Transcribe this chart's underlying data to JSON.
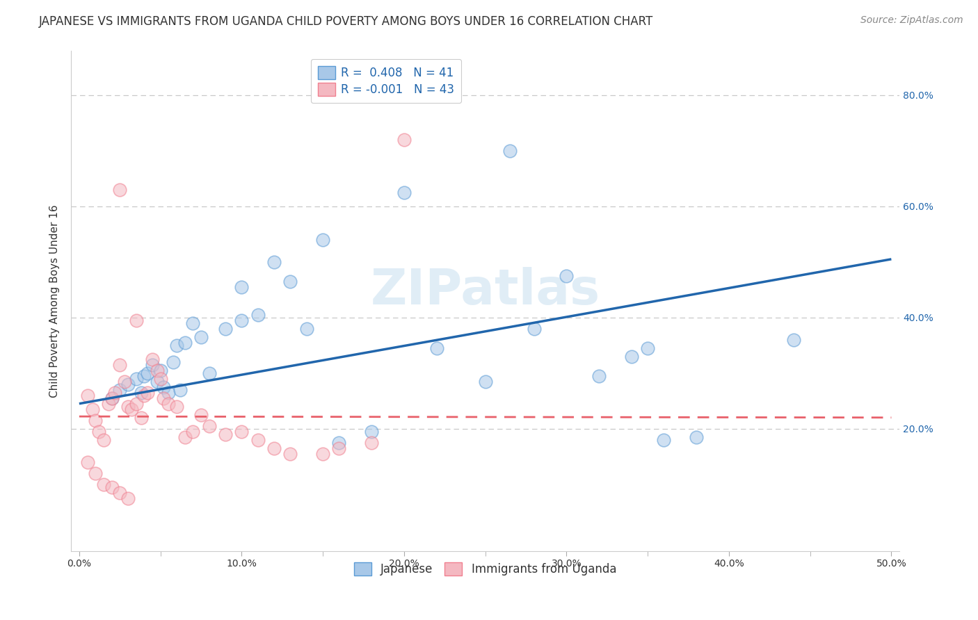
{
  "title": "JAPANESE VS IMMIGRANTS FROM UGANDA CHILD POVERTY AMONG BOYS UNDER 16 CORRELATION CHART",
  "source": "Source: ZipAtlas.com",
  "ylabel": "Child Poverty Among Boys Under 16",
  "xlim": [
    -0.005,
    0.505
  ],
  "ylim": [
    -0.02,
    0.88
  ],
  "xtick_labels": [
    "0.0%",
    "",
    "10.0%",
    "",
    "20.0%",
    "",
    "30.0%",
    "",
    "40.0%",
    "",
    "50.0%"
  ],
  "xtick_vals": [
    0.0,
    0.05,
    0.1,
    0.15,
    0.2,
    0.25,
    0.3,
    0.35,
    0.4,
    0.45,
    0.5
  ],
  "xtick_label_vals": [
    0.0,
    0.1,
    0.2,
    0.3,
    0.4,
    0.5
  ],
  "xtick_label_strs": [
    "0.0%",
    "10.0%",
    "20.0%",
    "30.0%",
    "40.0%",
    "50.0%"
  ],
  "ytick_vals": [
    0.2,
    0.4,
    0.6,
    0.8
  ],
  "ytick_labels": [
    "20.0%",
    "40.0%",
    "60.0%",
    "80.0%"
  ],
  "blue_fill_color": "#a8c8e8",
  "blue_edge_color": "#5b9bd5",
  "pink_fill_color": "#f4b8c1",
  "pink_edge_color": "#f08090",
  "blue_line_color": "#2166ac",
  "pink_line_color": "#e8606a",
  "legend_blue_label": "R =  0.408   N = 41",
  "legend_pink_label": "R = -0.001   N = 43",
  "legend_japanese": "Japanese",
  "legend_uganda": "Immigrants from Uganda",
  "watermark": "ZIPatlas",
  "blue_points_x": [
    0.02,
    0.025,
    0.03,
    0.035,
    0.038,
    0.04,
    0.042,
    0.045,
    0.048,
    0.05,
    0.052,
    0.055,
    0.058,
    0.06,
    0.062,
    0.065,
    0.07,
    0.075,
    0.08,
    0.09,
    0.1,
    0.11,
    0.12,
    0.14,
    0.16,
    0.18,
    0.22,
    0.25,
    0.28,
    0.32,
    0.35,
    0.38,
    0.44,
    0.3,
    0.265,
    0.2,
    0.15,
    0.13,
    0.34,
    0.36,
    0.1
  ],
  "blue_points_y": [
    0.255,
    0.27,
    0.28,
    0.29,
    0.265,
    0.295,
    0.3,
    0.315,
    0.285,
    0.305,
    0.275,
    0.265,
    0.32,
    0.35,
    0.27,
    0.355,
    0.39,
    0.365,
    0.3,
    0.38,
    0.395,
    0.405,
    0.5,
    0.38,
    0.175,
    0.195,
    0.345,
    0.285,
    0.38,
    0.295,
    0.345,
    0.185,
    0.36,
    0.475,
    0.7,
    0.625,
    0.54,
    0.465,
    0.33,
    0.18,
    0.455
  ],
  "pink_points_x": [
    0.005,
    0.008,
    0.01,
    0.012,
    0.015,
    0.018,
    0.02,
    0.022,
    0.025,
    0.028,
    0.03,
    0.032,
    0.035,
    0.038,
    0.04,
    0.042,
    0.045,
    0.048,
    0.05,
    0.052,
    0.055,
    0.06,
    0.065,
    0.07,
    0.075,
    0.08,
    0.09,
    0.1,
    0.11,
    0.13,
    0.15,
    0.18,
    0.005,
    0.01,
    0.015,
    0.02,
    0.025,
    0.03,
    0.12,
    0.16,
    0.2,
    0.025,
    0.035
  ],
  "pink_points_y": [
    0.26,
    0.235,
    0.215,
    0.195,
    0.18,
    0.245,
    0.255,
    0.265,
    0.315,
    0.285,
    0.24,
    0.235,
    0.245,
    0.22,
    0.26,
    0.265,
    0.325,
    0.305,
    0.29,
    0.255,
    0.245,
    0.24,
    0.185,
    0.195,
    0.225,
    0.205,
    0.19,
    0.195,
    0.18,
    0.155,
    0.155,
    0.175,
    0.14,
    0.12,
    0.1,
    0.095,
    0.085,
    0.075,
    0.165,
    0.165,
    0.72,
    0.63,
    0.395
  ],
  "blue_trend_x": [
    0.0,
    0.5
  ],
  "blue_trend_y": [
    0.245,
    0.505
  ],
  "pink_trend_x": [
    0.0,
    0.5
  ],
  "pink_trend_y": [
    0.222,
    0.22
  ],
  "grid_color": "#c8c8c8",
  "grid_linestyle": "--",
  "background_color": "#ffffff",
  "title_fontsize": 12,
  "source_fontsize": 10,
  "axis_fontsize": 11,
  "tick_fontsize": 10,
  "legend_fontsize": 12,
  "watermark_fontsize": 52,
  "watermark_color": "#c8dff0",
  "watermark_alpha": 0.55,
  "dot_alpha": 0.55,
  "dot_size": 180
}
